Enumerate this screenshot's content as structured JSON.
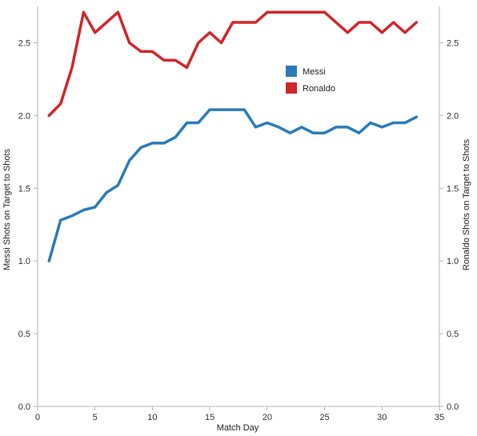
{
  "chart_data": {
    "type": "line",
    "xlabel": "Match Day",
    "ylabel_left": "Messi Shots on Target to Shots",
    "ylabel_right": "Ronaldo Shots on Target to Shots",
    "xlim": [
      0,
      35
    ],
    "ylim": [
      0,
      2.75
    ],
    "x_ticks": [
      "0",
      "5",
      "10",
      "15",
      "20",
      "25",
      "30",
      "35"
    ],
    "y_ticks": [
      "0.0",
      "0.5",
      "1.0",
      "1.5",
      "2.0",
      "2.5"
    ],
    "legend_placement": "top-right",
    "grid": false,
    "x": [
      1,
      2,
      3,
      4,
      5,
      6,
      7,
      8,
      9,
      10,
      11,
      12,
      13,
      14,
      15,
      16,
      17,
      18,
      19,
      20,
      21,
      22,
      23,
      24,
      25,
      26,
      27,
      28,
      29,
      30,
      31,
      32,
      33
    ],
    "series": [
      {
        "name": "Messi",
        "color": "#2b7bba",
        "values": [
          1.0,
          1.28,
          1.31,
          1.35,
          1.37,
          1.47,
          1.52,
          1.69,
          1.78,
          1.81,
          1.81,
          1.85,
          1.95,
          1.95,
          2.04,
          2.04,
          2.04,
          2.04,
          1.92,
          1.95,
          1.92,
          1.88,
          1.92,
          1.88,
          1.88,
          1.92,
          1.92,
          1.88,
          1.95,
          1.92,
          1.95,
          1.95,
          1.99
        ]
      },
      {
        "name": "Ronaldo",
        "color": "#d3262a",
        "values": [
          2.0,
          2.08,
          2.33,
          2.71,
          2.57,
          2.64,
          2.71,
          2.5,
          2.44,
          2.44,
          2.38,
          2.38,
          2.33,
          2.5,
          2.57,
          2.5,
          2.64,
          2.64,
          2.64,
          2.71,
          2.71,
          2.71,
          2.71,
          2.71,
          2.71,
          2.64,
          2.57,
          2.64,
          2.64,
          2.57,
          2.64,
          2.57,
          2.64
        ]
      }
    ]
  }
}
